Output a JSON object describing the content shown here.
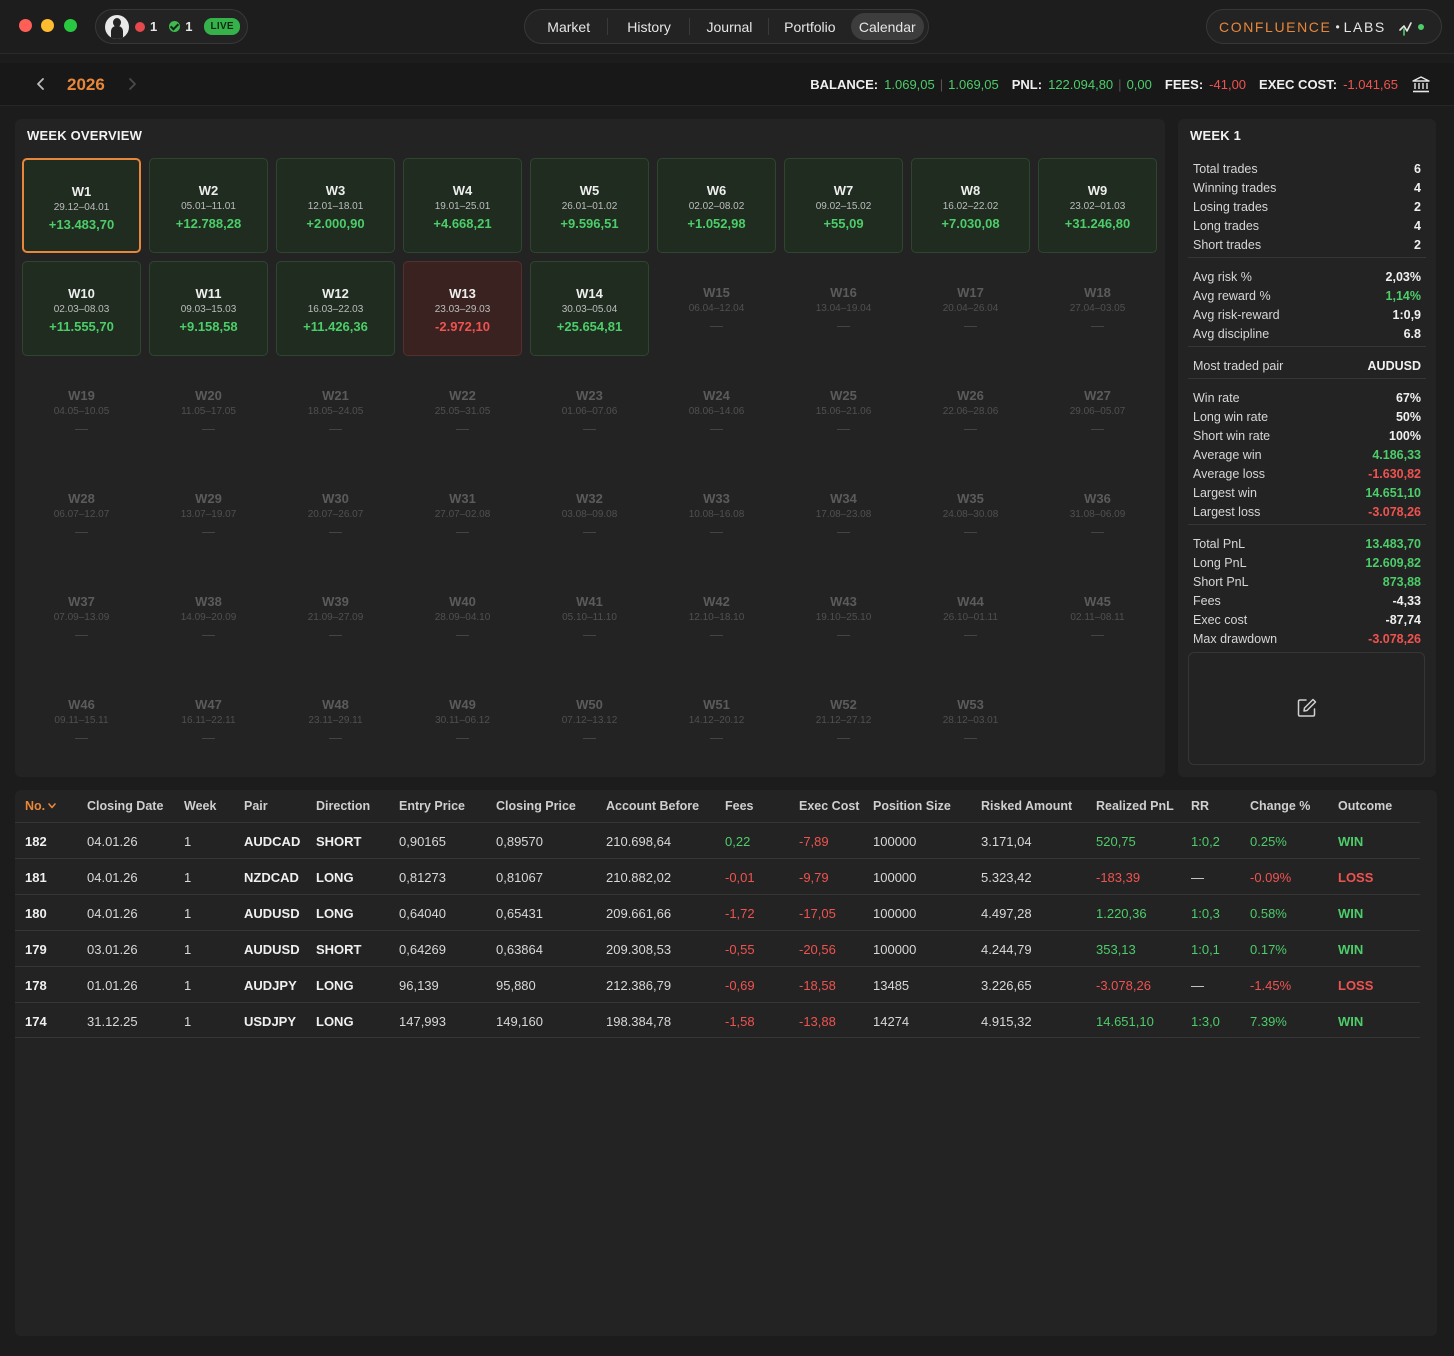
{
  "topbar": {
    "alerts_count": "1",
    "checks_count": "1",
    "live_label": "LIVE",
    "nav_tabs": [
      {
        "label": "Market"
      },
      {
        "label": "History"
      },
      {
        "label": "Journal"
      },
      {
        "label": "Portfolio"
      },
      {
        "label": "Calendar",
        "active": true
      }
    ],
    "brand_primary": "CONFLUENCE",
    "brand_separator": "•",
    "brand_secondary": "LABS"
  },
  "yearbar": {
    "year": "2026",
    "balance_label": "BALANCE:",
    "balance_a": "1.069,05",
    "balance_sep": "|",
    "balance_b": "1.069,05",
    "pnl_label": "PNL:",
    "pnl_a": "122.094,80",
    "pnl_sep": "|",
    "pnl_b": "0,00",
    "fees_label": "FEES:",
    "fees_value": "-41,00",
    "exec_label": "EXEC COST:",
    "exec_value": "-1.041,65"
  },
  "overview": {
    "title": "WEEK OVERVIEW",
    "weeks": [
      {
        "name": "W1",
        "range": "29.12–04.01",
        "pnl": "+13.483,70",
        "state": "pos"
      },
      {
        "name": "W2",
        "range": "05.01–11.01",
        "pnl": "+12.788,28",
        "state": "pos"
      },
      {
        "name": "W3",
        "range": "12.01–18.01",
        "pnl": "+2.000,90",
        "state": "pos"
      },
      {
        "name": "W4",
        "range": "19.01–25.01",
        "pnl": "+4.668,21",
        "state": "pos"
      },
      {
        "name": "W5",
        "range": "26.01–01.02",
        "pnl": "+9.596,51",
        "state": "pos"
      },
      {
        "name": "W6",
        "range": "02.02–08.02",
        "pnl": "+1.052,98",
        "state": "pos"
      },
      {
        "name": "W7",
        "range": "09.02–15.02",
        "pnl": "+55,09",
        "state": "pos"
      },
      {
        "name": "W8",
        "range": "16.02–22.02",
        "pnl": "+7.030,08",
        "state": "pos"
      },
      {
        "name": "W9",
        "range": "23.02–01.03",
        "pnl": "+31.246,80",
        "state": "pos"
      },
      {
        "name": "W10",
        "range": "02.03–08.03",
        "pnl": "+11.555,70",
        "state": "pos"
      },
      {
        "name": "W11",
        "range": "09.03–15.03",
        "pnl": "+9.158,58",
        "state": "pos"
      },
      {
        "name": "W12",
        "range": "16.03–22.03",
        "pnl": "+11.426,36",
        "state": "pos"
      },
      {
        "name": "W13",
        "range": "23.03–29.03",
        "pnl": "-2.972,10",
        "state": "neg"
      },
      {
        "name": "W14",
        "range": "30.03–05.04",
        "pnl": "+25.654,81",
        "state": "pos"
      },
      {
        "name": "W15",
        "range": "06.04–12.04",
        "pnl": "—",
        "state": "empty"
      },
      {
        "name": "W16",
        "range": "13.04–19.04",
        "pnl": "—",
        "state": "empty"
      },
      {
        "name": "W17",
        "range": "20.04–26.04",
        "pnl": "—",
        "state": "empty"
      },
      {
        "name": "W18",
        "range": "27.04–03.05",
        "pnl": "—",
        "state": "empty"
      },
      {
        "name": "W19",
        "range": "04.05–10.05",
        "pnl": "—",
        "state": "empty"
      },
      {
        "name": "W20",
        "range": "11.05–17.05",
        "pnl": "—",
        "state": "empty"
      },
      {
        "name": "W21",
        "range": "18.05–24.05",
        "pnl": "—",
        "state": "empty"
      },
      {
        "name": "W22",
        "range": "25.05–31.05",
        "pnl": "—",
        "state": "empty"
      },
      {
        "name": "W23",
        "range": "01.06–07.06",
        "pnl": "—",
        "state": "empty"
      },
      {
        "name": "W24",
        "range": "08.06–14.06",
        "pnl": "—",
        "state": "empty"
      },
      {
        "name": "W25",
        "range": "15.06–21.06",
        "pnl": "—",
        "state": "empty"
      },
      {
        "name": "W26",
        "range": "22.06–28.06",
        "pnl": "—",
        "state": "empty"
      },
      {
        "name": "W27",
        "range": "29.06–05.07",
        "pnl": "—",
        "state": "empty"
      },
      {
        "name": "W28",
        "range": "06.07–12.07",
        "pnl": "—",
        "state": "empty"
      },
      {
        "name": "W29",
        "range": "13.07–19.07",
        "pnl": "—",
        "state": "empty"
      },
      {
        "name": "W30",
        "range": "20.07–26.07",
        "pnl": "—",
        "state": "empty"
      },
      {
        "name": "W31",
        "range": "27.07–02.08",
        "pnl": "—",
        "state": "empty"
      },
      {
        "name": "W32",
        "range": "03.08–09.08",
        "pnl": "—",
        "state": "empty"
      },
      {
        "name": "W33",
        "range": "10.08–16.08",
        "pnl": "—",
        "state": "empty"
      },
      {
        "name": "W34",
        "range": "17.08–23.08",
        "pnl": "—",
        "state": "empty"
      },
      {
        "name": "W35",
        "range": "24.08–30.08",
        "pnl": "—",
        "state": "empty"
      },
      {
        "name": "W36",
        "range": "31.08–06.09",
        "pnl": "—",
        "state": "empty"
      },
      {
        "name": "W37",
        "range": "07.09–13.09",
        "pnl": "—",
        "state": "empty"
      },
      {
        "name": "W38",
        "range": "14.09–20.09",
        "pnl": "—",
        "state": "empty"
      },
      {
        "name": "W39",
        "range": "21.09–27.09",
        "pnl": "—",
        "state": "empty"
      },
      {
        "name": "W40",
        "range": "28.09–04.10",
        "pnl": "—",
        "state": "empty"
      },
      {
        "name": "W41",
        "range": "05.10–11.10",
        "pnl": "—",
        "state": "empty"
      },
      {
        "name": "W42",
        "range": "12.10–18.10",
        "pnl": "—",
        "state": "empty"
      },
      {
        "name": "W43",
        "range": "19.10–25.10",
        "pnl": "—",
        "state": "empty"
      },
      {
        "name": "W44",
        "range": "26.10–01.11",
        "pnl": "—",
        "state": "empty"
      },
      {
        "name": "W45",
        "range": "02.11–08.11",
        "pnl": "—",
        "state": "empty"
      },
      {
        "name": "W46",
        "range": "09.11–15.11",
        "pnl": "—",
        "state": "empty"
      },
      {
        "name": "W47",
        "range": "16.11–22.11",
        "pnl": "—",
        "state": "empty"
      },
      {
        "name": "W48",
        "range": "23.11–29.11",
        "pnl": "—",
        "state": "empty"
      },
      {
        "name": "W49",
        "range": "30.11–06.12",
        "pnl": "—",
        "state": "empty"
      },
      {
        "name": "W50",
        "range": "07.12–13.12",
        "pnl": "—",
        "state": "empty"
      },
      {
        "name": "W51",
        "range": "14.12–20.12",
        "pnl": "—",
        "state": "empty"
      },
      {
        "name": "W52",
        "range": "21.12–27.12",
        "pnl": "—",
        "state": "empty"
      },
      {
        "name": "W53",
        "range": "28.12–03.01",
        "pnl": "—",
        "state": "empty"
      }
    ]
  },
  "week_stats": {
    "title": "WEEK 1",
    "groups": [
      [
        {
          "label": "Total trades",
          "value": "6",
          "tone": ""
        },
        {
          "label": "Winning trades",
          "value": "4",
          "tone": ""
        },
        {
          "label": "Losing trades",
          "value": "2",
          "tone": ""
        },
        {
          "label": "Long trades",
          "value": "4",
          "tone": ""
        },
        {
          "label": "Short trades",
          "value": "2",
          "tone": ""
        }
      ],
      [
        {
          "label": "Avg risk %",
          "value": "2,03%",
          "tone": ""
        },
        {
          "label": "Avg reward %",
          "value": "1,14%",
          "tone": "g"
        },
        {
          "label": "Avg risk-reward",
          "value": "1:0,9",
          "tone": ""
        },
        {
          "label": "Avg discipline",
          "value": "6.8",
          "tone": ""
        }
      ],
      [
        {
          "label": "Most traded pair",
          "value": "AUDUSD",
          "tone": ""
        }
      ],
      [
        {
          "label": "Win rate",
          "value": "67%",
          "tone": ""
        },
        {
          "label": "Long win rate",
          "value": "50%",
          "tone": ""
        },
        {
          "label": "Short win rate",
          "value": "100%",
          "tone": ""
        },
        {
          "label": "Average win",
          "value": "4.186,33",
          "tone": "g"
        },
        {
          "label": "Average loss",
          "value": "-1.630,82",
          "tone": "r"
        },
        {
          "label": "Largest win",
          "value": "14.651,10",
          "tone": "g"
        },
        {
          "label": "Largest loss",
          "value": "-3.078,26",
          "tone": "r"
        }
      ],
      [
        {
          "label": "Total PnL",
          "value": "13.483,70",
          "tone": "g"
        },
        {
          "label": "Long PnL",
          "value": "12.609,82",
          "tone": "g"
        },
        {
          "label": "Short PnL",
          "value": "873,88",
          "tone": "g"
        },
        {
          "label": "Fees",
          "value": "-4,33",
          "tone": ""
        },
        {
          "label": "Exec cost",
          "value": "-87,74",
          "tone": ""
        },
        {
          "label": "Max drawdown",
          "value": "-3.078,26",
          "tone": "r"
        }
      ]
    ]
  },
  "trades": {
    "columns": [
      "No.",
      "Closing Date",
      "Week",
      "Pair",
      "Direction",
      "Entry Price",
      "Closing Price",
      "Account Before",
      "Fees",
      "Exec Cost",
      "Position Size",
      "Risked Amount",
      "Realized PnL",
      "RR",
      "Change %",
      "Outcome"
    ],
    "sort_indicator": "chevron-down",
    "rows": [
      {
        "no": "182",
        "date": "04.01.26",
        "week": "1",
        "pair": "AUDCAD",
        "direction": "SHORT",
        "entry": "0,90165",
        "close": "0,89570",
        "before": "210.698,64",
        "fees": "0,22",
        "fees_tone": "g",
        "exec": "-7,89",
        "size": "100000",
        "risked": "3.171,04",
        "pnl": "520,75",
        "pnl_tone": "g",
        "rr": "1:0,2",
        "rr_tone": "g",
        "change": "0.25%",
        "change_tone": "g",
        "outcome": "WIN",
        "outcome_tone": "g"
      },
      {
        "no": "181",
        "date": "04.01.26",
        "week": "1",
        "pair": "NZDCAD",
        "direction": "LONG",
        "entry": "0,81273",
        "close": "0,81067",
        "before": "210.882,02",
        "fees": "-0,01",
        "fees_tone": "r",
        "exec": "-9,79",
        "size": "100000",
        "risked": "5.323,42",
        "pnl": "-183,39",
        "pnl_tone": "r",
        "rr": "—",
        "rr_tone": "",
        "change": "-0.09%",
        "change_tone": "r",
        "outcome": "LOSS",
        "outcome_tone": "r"
      },
      {
        "no": "180",
        "date": "04.01.26",
        "week": "1",
        "pair": "AUDUSD",
        "direction": "LONG",
        "entry": "0,64040",
        "close": "0,65431",
        "before": "209.661,66",
        "fees": "-1,72",
        "fees_tone": "r",
        "exec": "-17,05",
        "size": "100000",
        "risked": "4.497,28",
        "pnl": "1.220,36",
        "pnl_tone": "g",
        "rr": "1:0,3",
        "rr_tone": "g",
        "change": "0.58%",
        "change_tone": "g",
        "outcome": "WIN",
        "outcome_tone": "g"
      },
      {
        "no": "179",
        "date": "03.01.26",
        "week": "1",
        "pair": "AUDUSD",
        "direction": "SHORT",
        "entry": "0,64269",
        "close": "0,63864",
        "before": "209.308,53",
        "fees": "-0,55",
        "fees_tone": "r",
        "exec": "-20,56",
        "size": "100000",
        "risked": "4.244,79",
        "pnl": "353,13",
        "pnl_tone": "g",
        "rr": "1:0,1",
        "rr_tone": "g",
        "change": "0.17%",
        "change_tone": "g",
        "outcome": "WIN",
        "outcome_tone": "g"
      },
      {
        "no": "178",
        "date": "01.01.26",
        "week": "1",
        "pair": "AUDJPY",
        "direction": "LONG",
        "entry": "96,139",
        "close": "95,880",
        "before": "212.386,79",
        "fees": "-0,69",
        "fees_tone": "r",
        "exec": "-18,58",
        "size": "13485",
        "risked": "3.226,65",
        "pnl": "-3.078,26",
        "pnl_tone": "r",
        "rr": "—",
        "rr_tone": "",
        "change": "-1.45%",
        "change_tone": "r",
        "outcome": "LOSS",
        "outcome_tone": "r"
      },
      {
        "no": "174",
        "date": "31.12.25",
        "week": "1",
        "pair": "USDJPY",
        "direction": "LONG",
        "entry": "147,993",
        "close": "149,160",
        "before": "198.384,78",
        "fees": "-1,58",
        "fees_tone": "r",
        "exec": "-13,88",
        "size": "14274",
        "risked": "4.915,32",
        "pnl": "14.651,10",
        "pnl_tone": "g",
        "rr": "1:3,0",
        "rr_tone": "g",
        "change": "7.39%",
        "change_tone": "g",
        "outcome": "WIN",
        "outcome_tone": "g"
      }
    ]
  },
  "colors": {
    "accent": "#e8873a",
    "positive": "#4ccd6a",
    "negative": "#ef5350",
    "panel": "#232323",
    "background": "#1c1c1c"
  }
}
